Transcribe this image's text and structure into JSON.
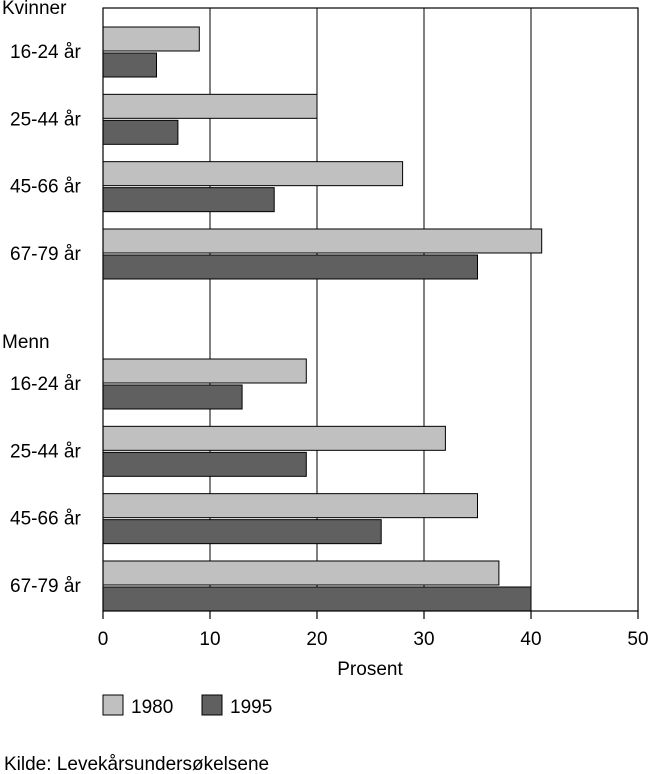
{
  "chart_data": {
    "type": "bar",
    "orientation": "horizontal",
    "groups": [
      {
        "label": "Kvinner",
        "categories": [
          "16-24 år",
          "25-44 år",
          "45-66 år",
          "67-79 år"
        ],
        "series": [
          {
            "name": "1980",
            "values": [
              9,
              20,
              28,
              41
            ]
          },
          {
            "name": "1995",
            "values": [
              5,
              7,
              16,
              35
            ]
          }
        ]
      },
      {
        "label": "Menn",
        "categories": [
          "16-24 år",
          "25-44 år",
          "45-66 år",
          "67-79 år"
        ],
        "series": [
          {
            "name": "1980",
            "values": [
              19,
              32,
              35,
              37
            ]
          },
          {
            "name": "1995",
            "values": [
              13,
              19,
              26,
              40
            ]
          }
        ]
      }
    ],
    "xlabel": "Prosent",
    "xlim": [
      0,
      50
    ],
    "xticks": [
      0,
      10,
      20,
      30,
      40,
      50
    ],
    "grid": true,
    "legend": [
      {
        "name": "1980",
        "color": "#c0c0c0"
      },
      {
        "name": "1995",
        "color": "#606060"
      }
    ],
    "legend_position": "bottom-left"
  },
  "source": "Kilde: Levekårsundersøkelsene",
  "colors": {
    "s1980": "#c0c0c0",
    "s1995": "#606060",
    "stroke": "#000000"
  }
}
